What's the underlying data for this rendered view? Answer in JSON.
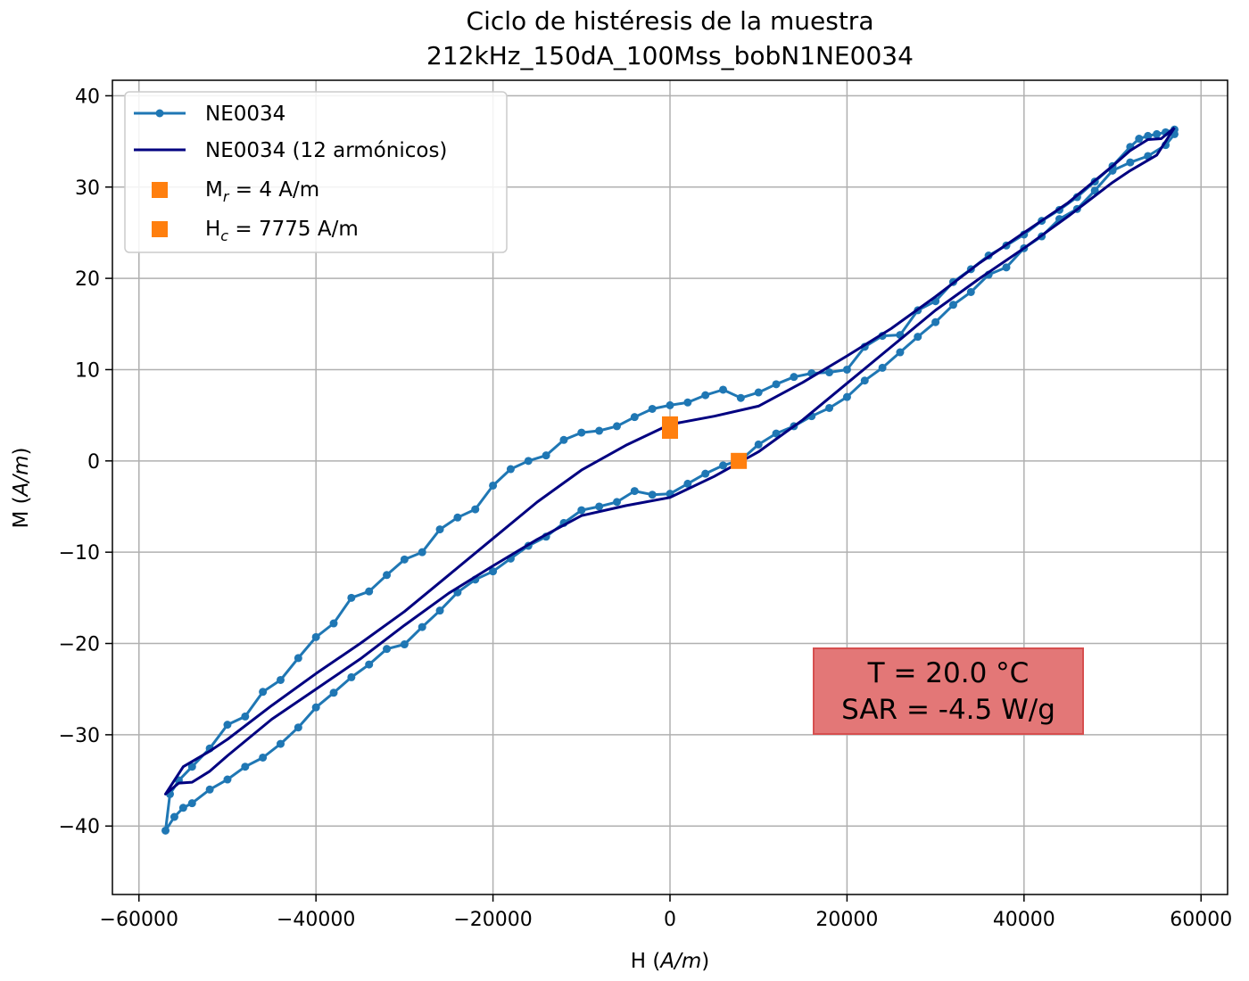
{
  "chart_data": {
    "type": "line",
    "title_line1": "Ciclo de histéresis de la muestra",
    "title_line2": "212kHz_150dA_100Mss_bobN1NE0034",
    "xlabel_main": "H (",
    "xlabel_unit": "A/m",
    "xlabel_close": ")",
    "ylabel_main": "M (",
    "ylabel_unit": "A/m",
    "ylabel_close": ")",
    "xlim": [
      -63000,
      63000
    ],
    "ylim": [
      -47.5,
      41.7
    ],
    "xticks": [
      -60000,
      -40000,
      -20000,
      0,
      20000,
      40000,
      60000
    ],
    "xtick_labels": [
      "−60000",
      "−40000",
      "−20000",
      "0",
      "20000",
      "40000",
      "60000"
    ],
    "yticks": [
      -40,
      -30,
      -20,
      -10,
      0,
      10,
      20,
      30,
      40
    ],
    "ytick_labels": [
      "−40",
      "−30",
      "−20",
      "−10",
      "0",
      "10",
      "20",
      "30",
      "40"
    ],
    "grid": true,
    "legend_position": "upper-left",
    "series": [
      {
        "name": "NE0034",
        "style": "line-markers",
        "color": "#1f77b4",
        "upper_branch": [
          [
            57000,
            36.3
          ],
          [
            56000,
            36.0
          ],
          [
            55000,
            35.8
          ],
          [
            54000,
            35.6
          ],
          [
            53000,
            35.3
          ],
          [
            52000,
            34.4
          ],
          [
            50000,
            32.3
          ],
          [
            48000,
            30.6
          ],
          [
            46000,
            28.9
          ],
          [
            44000,
            27.5
          ],
          [
            42000,
            26.3
          ],
          [
            40000,
            24.8
          ],
          [
            38000,
            23.6
          ],
          [
            36000,
            22.5
          ],
          [
            34000,
            21.0
          ],
          [
            32000,
            19.6
          ],
          [
            30000,
            17.5
          ],
          [
            28000,
            16.5
          ],
          [
            26000,
            13.8
          ],
          [
            24000,
            13.7
          ],
          [
            22000,
            12.5
          ],
          [
            20000,
            10.0
          ],
          [
            18000,
            9.7
          ],
          [
            16000,
            9.6
          ],
          [
            14000,
            9.2
          ],
          [
            12000,
            8.4
          ],
          [
            10000,
            7.5
          ],
          [
            8000,
            6.9
          ],
          [
            6000,
            7.8
          ],
          [
            4000,
            7.2
          ],
          [
            2000,
            6.4
          ],
          [
            0,
            6.1
          ],
          [
            -2000,
            5.7
          ],
          [
            -4000,
            4.8
          ],
          [
            -6000,
            3.8
          ],
          [
            -8000,
            3.3
          ],
          [
            -10000,
            3.1
          ],
          [
            -12000,
            2.3
          ],
          [
            -14000,
            0.6
          ],
          [
            -16000,
            0.0
          ],
          [
            -18000,
            -0.9
          ],
          [
            -20000,
            -2.7
          ],
          [
            -22000,
            -5.3
          ],
          [
            -24000,
            -6.2
          ],
          [
            -26000,
            -7.5
          ],
          [
            -28000,
            -10.0
          ],
          [
            -30000,
            -10.8
          ],
          [
            -32000,
            -12.5
          ],
          [
            -34000,
            -14.3
          ],
          [
            -36000,
            -15.0
          ],
          [
            -38000,
            -17.8
          ],
          [
            -40000,
            -19.3
          ],
          [
            -42000,
            -21.6
          ],
          [
            -44000,
            -24.0
          ],
          [
            -46000,
            -25.3
          ],
          [
            -48000,
            -28.0
          ],
          [
            -50000,
            -28.9
          ],
          [
            -52000,
            -31.5
          ],
          [
            -54000,
            -33.5
          ],
          [
            -55500,
            -35.0
          ],
          [
            -56500,
            -36.5
          ],
          [
            -57000,
            -40.5
          ]
        ],
        "lower_branch": [
          [
            -57000,
            -40.5
          ],
          [
            -56000,
            -39.0
          ],
          [
            -55000,
            -38.0
          ],
          [
            -54000,
            -37.5
          ],
          [
            -52000,
            -36.0
          ],
          [
            -50000,
            -34.9
          ],
          [
            -48000,
            -33.5
          ],
          [
            -46000,
            -32.5
          ],
          [
            -44000,
            -31.0
          ],
          [
            -42000,
            -29.2
          ],
          [
            -40000,
            -27.0
          ],
          [
            -38000,
            -25.4
          ],
          [
            -36000,
            -23.7
          ],
          [
            -34000,
            -22.3
          ],
          [
            -32000,
            -20.6
          ],
          [
            -30000,
            -20.1
          ],
          [
            -28000,
            -18.2
          ],
          [
            -26000,
            -16.4
          ],
          [
            -24000,
            -14.4
          ],
          [
            -22000,
            -13.0
          ],
          [
            -20000,
            -12.1
          ],
          [
            -18000,
            -10.7
          ],
          [
            -16000,
            -9.3
          ],
          [
            -14000,
            -8.3
          ],
          [
            -12000,
            -6.8
          ],
          [
            -10000,
            -5.4
          ],
          [
            -8000,
            -5.0
          ],
          [
            -6000,
            -4.5
          ],
          [
            -4000,
            -3.3
          ],
          [
            -2000,
            -3.7
          ],
          [
            0,
            -3.6
          ],
          [
            2000,
            -2.5
          ],
          [
            4000,
            -1.4
          ],
          [
            6000,
            -0.5
          ],
          [
            8000,
            0.1
          ],
          [
            10000,
            1.8
          ],
          [
            12000,
            3.0
          ],
          [
            14000,
            3.8
          ],
          [
            16000,
            4.9
          ],
          [
            18000,
            5.8
          ],
          [
            20000,
            7.0
          ],
          [
            22000,
            8.8
          ],
          [
            24000,
            10.2
          ],
          [
            26000,
            11.9
          ],
          [
            28000,
            13.6
          ],
          [
            30000,
            15.2
          ],
          [
            32000,
            17.1
          ],
          [
            34000,
            18.5
          ],
          [
            36000,
            20.4
          ],
          [
            38000,
            21.2
          ],
          [
            40000,
            23.3
          ],
          [
            42000,
            24.6
          ],
          [
            44000,
            26.5
          ],
          [
            46000,
            27.6
          ],
          [
            48000,
            29.6
          ],
          [
            50000,
            31.8
          ],
          [
            52000,
            32.7
          ],
          [
            54000,
            33.4
          ],
          [
            56000,
            34.6
          ],
          [
            57000,
            35.8
          ]
        ]
      },
      {
        "name": "NE0034 (12 armónicos)",
        "style": "line",
        "color": "#000080",
        "upper_branch": [
          [
            57000,
            36.5
          ],
          [
            55500,
            35.3
          ],
          [
            54000,
            35.2
          ],
          [
            52000,
            34.0
          ],
          [
            50000,
            32.3
          ],
          [
            45000,
            28.3
          ],
          [
            40000,
            25.0
          ],
          [
            35000,
            21.7
          ],
          [
            30000,
            18.0
          ],
          [
            25000,
            14.5
          ],
          [
            20000,
            11.5
          ],
          [
            15000,
            8.6
          ],
          [
            10000,
            6.0
          ],
          [
            5000,
            4.9
          ],
          [
            0,
            4.0
          ],
          [
            -5000,
            1.7
          ],
          [
            -10000,
            -1.0
          ],
          [
            -15000,
            -4.5
          ],
          [
            -20000,
            -8.5
          ],
          [
            -25000,
            -12.5
          ],
          [
            -30000,
            -16.5
          ],
          [
            -35000,
            -20.0
          ],
          [
            -40000,
            -23.3
          ],
          [
            -45000,
            -26.8
          ],
          [
            -50000,
            -30.5
          ],
          [
            -52000,
            -31.8
          ],
          [
            -55000,
            -33.5
          ],
          [
            -57000,
            -36.5
          ]
        ],
        "lower_branch": [
          [
            -57000,
            -36.5
          ],
          [
            -55500,
            -35.3
          ],
          [
            -54000,
            -35.2
          ],
          [
            -52000,
            -34.0
          ],
          [
            -50000,
            -32.3
          ],
          [
            -45000,
            -28.3
          ],
          [
            -40000,
            -25.0
          ],
          [
            -35000,
            -21.7
          ],
          [
            -30000,
            -18.0
          ],
          [
            -25000,
            -14.5
          ],
          [
            -20000,
            -11.5
          ],
          [
            -15000,
            -8.6
          ],
          [
            -10000,
            -6.0
          ],
          [
            -5000,
            -4.9
          ],
          [
            0,
            -4.0
          ],
          [
            5000,
            -1.7
          ],
          [
            10000,
            1.0
          ],
          [
            15000,
            4.5
          ],
          [
            20000,
            8.5
          ],
          [
            25000,
            12.5
          ],
          [
            30000,
            16.5
          ],
          [
            35000,
            20.0
          ],
          [
            40000,
            23.3
          ],
          [
            45000,
            26.8
          ],
          [
            50000,
            30.5
          ],
          [
            52000,
            31.8
          ],
          [
            55000,
            33.5
          ],
          [
            57000,
            36.5
          ]
        ]
      },
      {
        "name_base": "M",
        "name_sub": "r",
        "name_rest": " = 4 A/m",
        "style": "square",
        "color": "#ff7f0e",
        "points": [
          [
            0,
            4.0
          ],
          [
            0,
            3.3
          ]
        ]
      },
      {
        "name_base": "H",
        "name_sub": "c",
        "name_rest": " = 7775 A/m",
        "style": "square",
        "color": "#ff7f0e",
        "points": [
          [
            7775,
            0.0
          ]
        ]
      }
    ],
    "annotation": {
      "line1": "T = 20.0 °C",
      "line2": "SAR = -4.5 W/g",
      "position": "lower-right",
      "background": "#e37777",
      "border": "#d64f4f"
    },
    "colors": {
      "axis": "#000000",
      "grid": "#b0b0b0",
      "legend_border": "#cccccc"
    }
  }
}
